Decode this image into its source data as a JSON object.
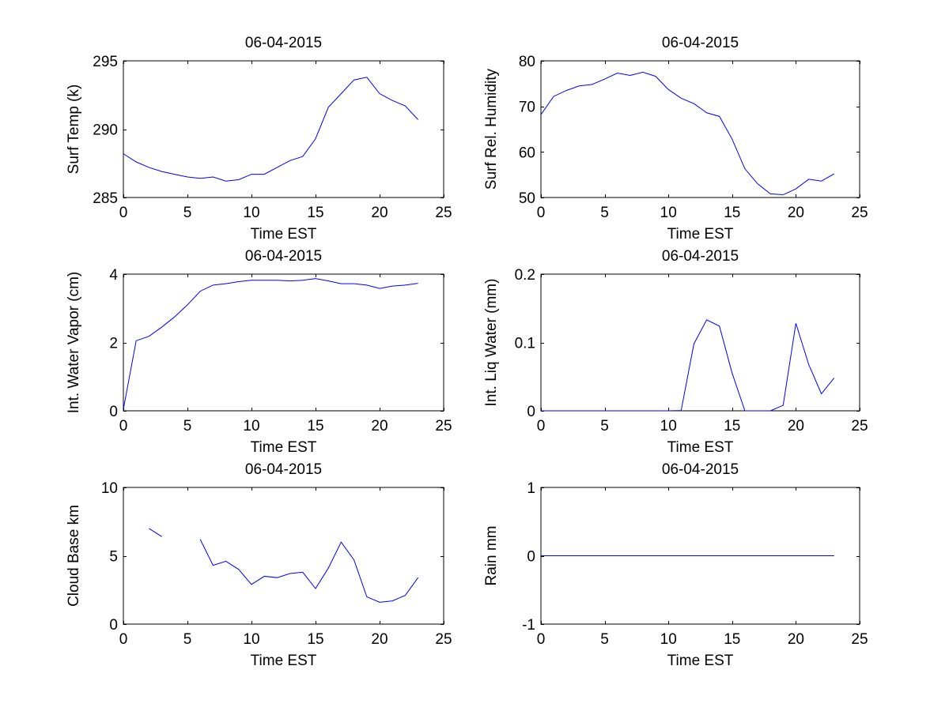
{
  "figure": {
    "background": "#ffffff",
    "line_color": "#0000ff",
    "axis_color": "#000000"
  },
  "chart_data": [
    {
      "type": "line",
      "title": "06-04-2015",
      "xlabel": "Time EST",
      "ylabel": "Surf Temp (k)",
      "xlim": [
        0,
        25
      ],
      "ylim": [
        285,
        295
      ],
      "xticks": [
        0,
        5,
        10,
        15,
        20,
        25
      ],
      "yticks": [
        285,
        290,
        295
      ],
      "grid": false,
      "series": [
        {
          "name": "Surf Temp",
          "x": [
            0,
            1,
            2,
            3,
            4,
            5,
            6,
            7,
            8,
            9,
            10,
            11,
            12,
            13,
            14,
            15,
            16,
            17,
            18,
            19,
            20,
            21,
            22,
            23
          ],
          "values": [
            288.2,
            287.6,
            287.2,
            286.9,
            286.7,
            286.5,
            286.4,
            286.5,
            286.2,
            286.3,
            286.7,
            286.7,
            287.2,
            287.7,
            288.0,
            289.3,
            291.6,
            292.6,
            293.6,
            293.8,
            292.6,
            292.1,
            291.7,
            290.7
          ]
        }
      ]
    },
    {
      "type": "line",
      "title": "06-04-2015",
      "xlabel": "Time EST",
      "ylabel": "Surf Rel. Humidity",
      "xlim": [
        0,
        25
      ],
      "ylim": [
        50,
        80
      ],
      "xticks": [
        0,
        5,
        10,
        15,
        20,
        25
      ],
      "yticks": [
        50,
        60,
        70,
        80
      ],
      "grid": false,
      "series": [
        {
          "name": "Surf Rel. Humidity",
          "x": [
            0,
            1,
            2,
            3,
            4,
            5,
            6,
            7,
            8,
            9,
            10,
            11,
            12,
            13,
            14,
            15,
            16,
            17,
            18,
            19,
            20,
            21,
            22,
            23
          ],
          "values": [
            68.2,
            72.2,
            73.5,
            74.5,
            74.8,
            76.0,
            77.3,
            76.8,
            77.5,
            76.6,
            73.7,
            71.8,
            70.6,
            68.6,
            67.8,
            62.8,
            56.3,
            53.0,
            50.8,
            50.6,
            51.9,
            54.0,
            53.6,
            55.2
          ]
        }
      ]
    },
    {
      "type": "line",
      "title": "06-04-2015",
      "xlabel": "Time EST",
      "ylabel": "Int. Water Vapor (cm)",
      "xlim": [
        0,
        25
      ],
      "ylim": [
        0,
        4
      ],
      "xticks": [
        0,
        5,
        10,
        15,
        20,
        25
      ],
      "yticks": [
        0,
        2,
        4
      ],
      "grid": false,
      "series": [
        {
          "name": "Int. Water Vapor",
          "x": [
            0,
            1,
            2,
            3,
            4,
            5,
            6,
            7,
            8,
            9,
            10,
            11,
            12,
            13,
            14,
            15,
            16,
            17,
            18,
            19,
            20,
            21,
            22,
            23
          ],
          "values": [
            0.05,
            2.05,
            2.18,
            2.45,
            2.75,
            3.1,
            3.5,
            3.68,
            3.72,
            3.78,
            3.82,
            3.82,
            3.82,
            3.8,
            3.82,
            3.87,
            3.8,
            3.72,
            3.72,
            3.68,
            3.58,
            3.65,
            3.68,
            3.73
          ]
        }
      ]
    },
    {
      "type": "line",
      "title": "06-04-2015",
      "xlabel": "Time EST",
      "ylabel": "Int. Liq Water (mm)",
      "xlim": [
        0,
        25
      ],
      "ylim": [
        0,
        0.2
      ],
      "xticks": [
        0,
        5,
        10,
        15,
        20,
        25
      ],
      "yticks": [
        0,
        0.1,
        0.2
      ],
      "ytick_labels": [
        "0",
        "0.1",
        "0.2"
      ],
      "grid": false,
      "series": [
        {
          "name": "Int. Liq Water",
          "x": [
            0,
            1,
            2,
            3,
            4,
            5,
            6,
            7,
            8,
            9,
            10,
            11,
            12,
            13,
            14,
            15,
            16,
            17,
            18,
            19,
            20,
            21,
            22,
            23
          ],
          "values": [
            0,
            0,
            0,
            0,
            0,
            0,
            0,
            0,
            0,
            0,
            0,
            0.0005,
            0.098,
            0.133,
            0.124,
            0.055,
            0,
            0,
            0,
            0.008,
            0.128,
            0.068,
            0.025,
            0.048
          ]
        }
      ]
    },
    {
      "type": "line",
      "title": "06-04-2015",
      "xlabel": "Time EST",
      "ylabel": "Cloud Base km",
      "xlim": [
        0,
        25
      ],
      "ylim": [
        0,
        10
      ],
      "xticks": [
        0,
        5,
        10,
        15,
        20,
        25
      ],
      "yticks": [
        0,
        5,
        10
      ],
      "grid": false,
      "series": [
        {
          "name": "Cloud Base",
          "x": [
            0,
            1,
            2,
            3,
            4,
            5,
            6,
            7,
            8,
            9,
            10,
            11,
            12,
            13,
            14,
            15,
            16,
            17,
            18,
            19,
            20,
            21,
            22,
            23
          ],
          "values": [
            null,
            null,
            7.0,
            6.4,
            null,
            null,
            6.2,
            4.3,
            4.6,
            4.0,
            2.9,
            3.5,
            3.4,
            3.7,
            3.8,
            2.6,
            4.1,
            6.0,
            4.7,
            2.0,
            1.6,
            1.7,
            2.1,
            3.4
          ]
        }
      ]
    },
    {
      "type": "line",
      "title": "06-04-2015",
      "xlabel": "Time EST",
      "ylabel": "Rain mm",
      "xlim": [
        0,
        25
      ],
      "ylim": [
        -1,
        1
      ],
      "xticks": [
        0,
        5,
        10,
        15,
        20,
        25
      ],
      "yticks": [
        -1,
        0,
        1
      ],
      "grid": false,
      "series": [
        {
          "name": "Rain",
          "x": [
            0,
            1,
            2,
            3,
            4,
            5,
            6,
            7,
            8,
            9,
            10,
            11,
            12,
            13,
            14,
            15,
            16,
            17,
            18,
            19,
            20,
            21,
            22,
            23
          ],
          "values": [
            0,
            0,
            0,
            0,
            0,
            0,
            0,
            0,
            0,
            0,
            0,
            0,
            0,
            0,
            0,
            0,
            0,
            0,
            0,
            0,
            0,
            0,
            0,
            0
          ]
        }
      ]
    }
  ]
}
